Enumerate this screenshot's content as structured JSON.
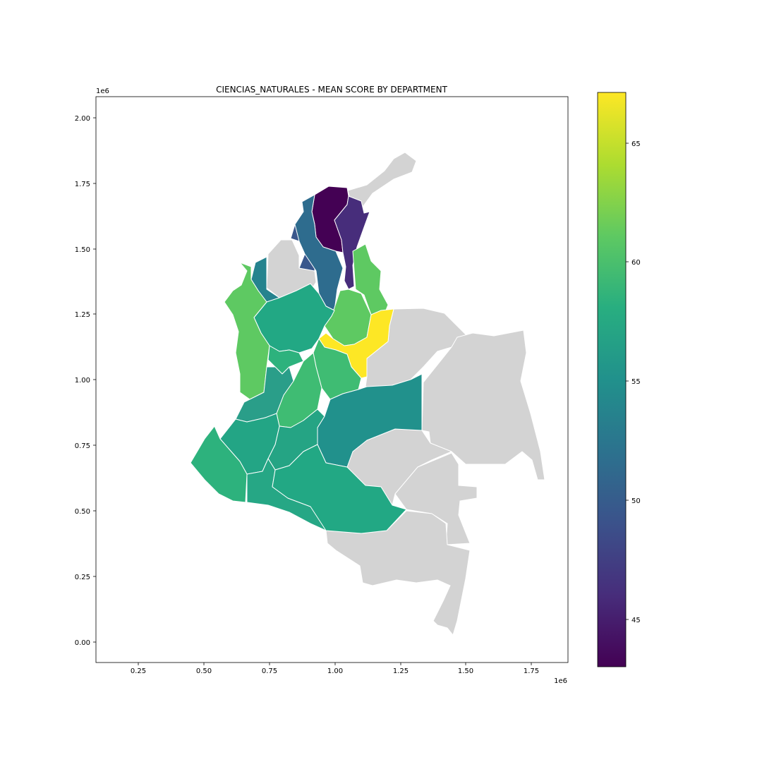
{
  "figure": {
    "title": "CIENCIAS_NATURALES - MEAN SCORE BY DEPARTMENT"
  },
  "map": {
    "x_axis": {
      "ticks": [
        0.25,
        0.5,
        0.75,
        1.0,
        1.25,
        1.5,
        1.75
      ],
      "tick_labels": [
        "0.25",
        "0.50",
        "0.75",
        "1.00",
        "1.25",
        "1.50",
        "1.75"
      ],
      "offset_label": "1e6",
      "range": [
        0.09,
        1.89
      ]
    },
    "y_axis": {
      "ticks": [
        0.0,
        0.25,
        0.5,
        0.75,
        1.0,
        1.25,
        1.5,
        1.75,
        2.0
      ],
      "tick_labels": [
        "0.00",
        "0.25",
        "0.50",
        "0.75",
        "1.00",
        "1.25",
        "1.50",
        "1.75",
        "2.00"
      ],
      "offset_label": "1e6",
      "range": [
        -0.078,
        2.082
      ]
    },
    "missing_color": "#d3d3d3",
    "border_color": "#ffffff"
  },
  "colorbar": {
    "colormap": "viridis",
    "range": [
      43.0,
      67.2
    ],
    "ticks": [
      45,
      50,
      55,
      60,
      65
    ],
    "tick_labels": [
      "45",
      "50",
      "55",
      "60",
      "65"
    ]
  }
}
